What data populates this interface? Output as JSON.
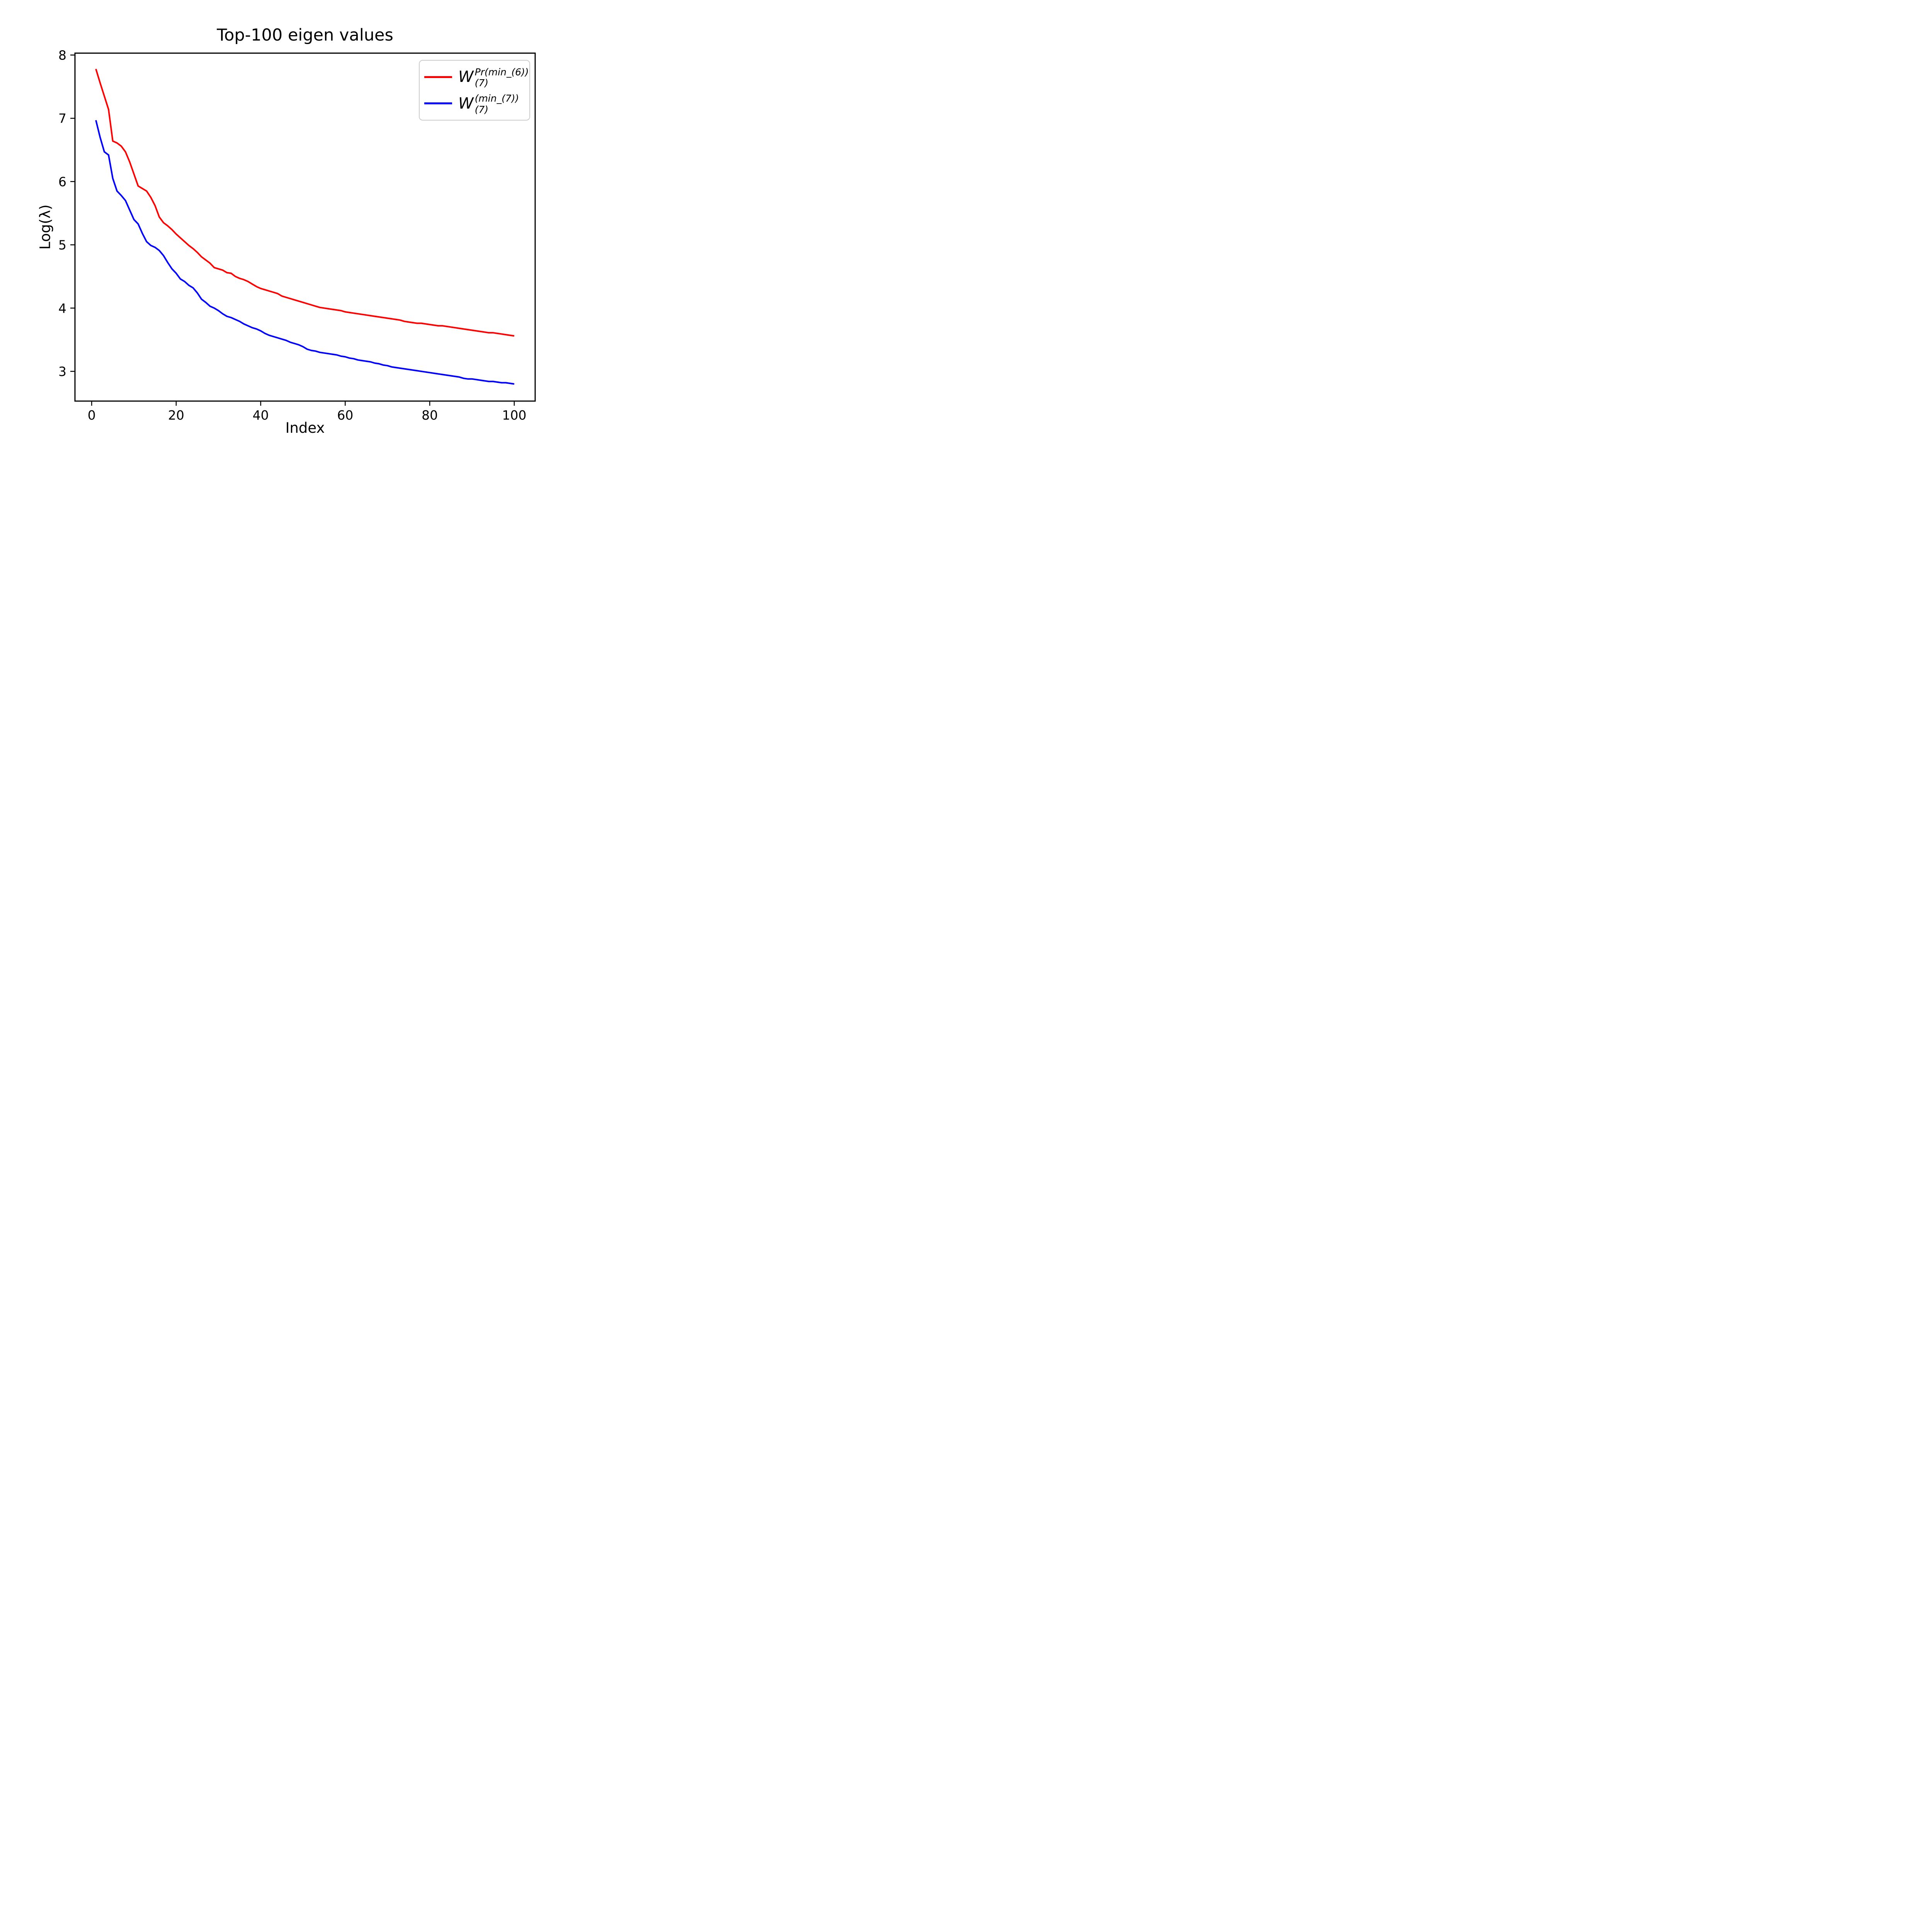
{
  "figure": {
    "title": "Top-100 eigen values",
    "xlabel": "Index",
    "ylabel": "Log(λ)"
  },
  "colors": {
    "series_red": "#ff0000",
    "series_blue": "#0000ff",
    "axes": "#000000",
    "legend_border": "#cccccc",
    "background": "#ffffff"
  },
  "legend": {
    "position": "upper right",
    "entries": [
      {
        "base": "W",
        "sup": "Pr(min_(6))",
        "sub": "(7)",
        "label_text": "W_{(7)}^{Pr(min_(6))}",
        "color": "#ff0000",
        "sample_style": "background:#ff0000"
      },
      {
        "base": "W",
        "sup": "(min_(7))",
        "sub": "(7)",
        "label_text": "W_{(7)}^{(min_(7))}",
        "color": "#0000ff",
        "sample_style": "background:#0000ff"
      }
    ]
  },
  "chart_data": {
    "type": "line",
    "title": "Top-100 eigen values",
    "xlabel": "Index",
    "ylabel": "Log(λ)",
    "grid": false,
    "legend_position": "upper right",
    "x_ticks": [
      0,
      20,
      40,
      60,
      80,
      100
    ],
    "y_ticks": [
      3,
      4,
      5,
      6,
      7,
      8
    ],
    "xlim": [
      -3.95,
      104.95
    ],
    "ylim": [
      2.53,
      8.03
    ],
    "x": [
      1,
      2,
      3,
      4,
      5,
      6,
      7,
      8,
      9,
      10,
      11,
      12,
      13,
      14,
      15,
      16,
      17,
      18,
      19,
      20,
      21,
      22,
      23,
      24,
      25,
      26,
      27,
      28,
      29,
      30,
      31,
      32,
      33,
      34,
      35,
      36,
      37,
      38,
      39,
      40,
      41,
      42,
      43,
      44,
      45,
      46,
      47,
      48,
      49,
      50,
      51,
      52,
      53,
      54,
      55,
      56,
      57,
      58,
      59,
      60,
      61,
      62,
      63,
      64,
      65,
      66,
      67,
      68,
      69,
      70,
      71,
      72,
      73,
      74,
      75,
      76,
      77,
      78,
      79,
      80,
      81,
      82,
      83,
      84,
      85,
      86,
      87,
      88,
      89,
      90,
      91,
      92,
      93,
      94,
      95,
      96,
      97,
      98,
      99,
      100
    ],
    "series": [
      {
        "name": "W_{(7)}^{Pr(min_(6))}",
        "color": "#ff0000",
        "values": [
          7.78,
          7.56,
          7.35,
          7.14,
          6.64,
          6.61,
          6.56,
          6.47,
          6.31,
          6.12,
          5.93,
          5.89,
          5.85,
          5.75,
          5.62,
          5.44,
          5.35,
          5.3,
          5.24,
          5.17,
          5.11,
          5.05,
          4.99,
          4.94,
          4.88,
          4.81,
          4.76,
          4.71,
          4.64,
          4.62,
          4.6,
          4.56,
          4.55,
          4.5,
          4.47,
          4.45,
          4.42,
          4.38,
          4.34,
          4.31,
          4.29,
          4.27,
          4.25,
          4.23,
          4.19,
          4.17,
          4.15,
          4.13,
          4.11,
          4.09,
          4.07,
          4.05,
          4.03,
          4.01,
          4.0,
          3.99,
          3.98,
          3.97,
          3.96,
          3.94,
          3.93,
          3.92,
          3.91,
          3.9,
          3.89,
          3.88,
          3.87,
          3.86,
          3.85,
          3.84,
          3.83,
          3.82,
          3.81,
          3.79,
          3.78,
          3.77,
          3.76,
          3.76,
          3.75,
          3.74,
          3.73,
          3.72,
          3.72,
          3.71,
          3.7,
          3.69,
          3.68,
          3.67,
          3.66,
          3.65,
          3.64,
          3.63,
          3.62,
          3.61,
          3.61,
          3.6,
          3.59,
          3.58,
          3.57,
          3.56
        ]
      },
      {
        "name": "W_{(7)}^{(min_(7))}",
        "color": "#0000ff",
        "values": [
          6.97,
          6.7,
          6.47,
          6.42,
          6.05,
          5.85,
          5.78,
          5.7,
          5.55,
          5.4,
          5.33,
          5.18,
          5.05,
          4.99,
          4.96,
          4.91,
          4.83,
          4.72,
          4.62,
          4.55,
          4.46,
          4.42,
          4.36,
          4.32,
          4.24,
          4.14,
          4.09,
          4.03,
          4.0,
          3.96,
          3.91,
          3.87,
          3.85,
          3.82,
          3.79,
          3.75,
          3.72,
          3.69,
          3.67,
          3.64,
          3.6,
          3.57,
          3.55,
          3.53,
          3.51,
          3.49,
          3.46,
          3.44,
          3.42,
          3.39,
          3.35,
          3.33,
          3.32,
          3.3,
          3.29,
          3.28,
          3.27,
          3.26,
          3.24,
          3.23,
          3.21,
          3.2,
          3.18,
          3.17,
          3.16,
          3.15,
          3.13,
          3.12,
          3.1,
          3.09,
          3.07,
          3.06,
          3.05,
          3.04,
          3.03,
          3.02,
          3.01,
          3.0,
          2.99,
          2.98,
          2.97,
          2.96,
          2.95,
          2.94,
          2.93,
          2.92,
          2.91,
          2.89,
          2.88,
          2.88,
          2.87,
          2.86,
          2.85,
          2.84,
          2.84,
          2.83,
          2.82,
          2.82,
          2.81,
          2.8
        ]
      }
    ]
  }
}
